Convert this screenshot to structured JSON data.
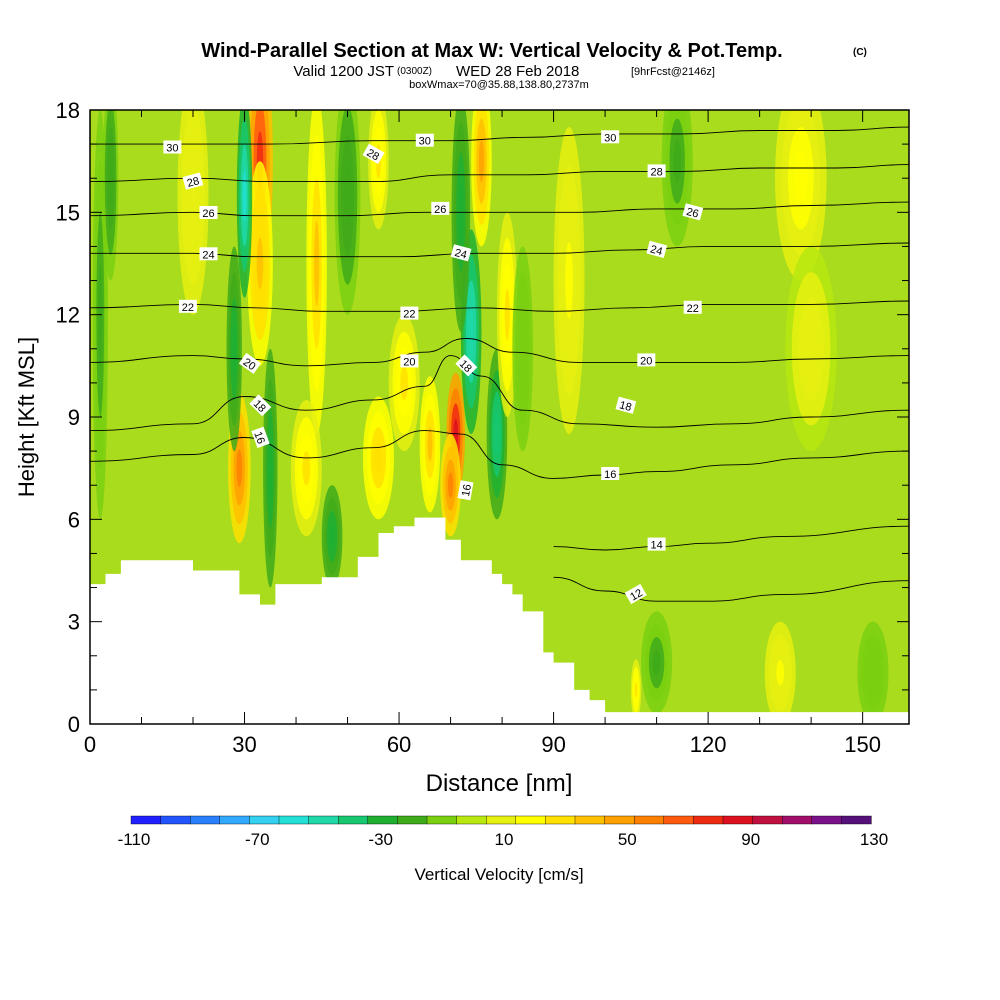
{
  "chart_data": {
    "type": "heatmap",
    "title": "Wind-Parallel Section at Max W: Vertical Velocity & Pot.Temp.",
    "title_mark": "(C)",
    "subtitle_main": "Valid 1200 JST",
    "subtitle_utc": "(0300Z)",
    "subtitle_date": "WED 28 Feb 2018",
    "subtitle_fcst": "[9hrFcst@2146z]",
    "subtitle2": "boxWmax=70@35.88,138.80,2737m",
    "xlabel": "Distance [nm]",
    "ylabel": "Height [Kft MSL]",
    "xlim": [
      0,
      159
    ],
    "ylim": [
      0,
      18
    ],
    "x_ticks": [
      "0",
      "30",
      "60",
      "90",
      "120",
      "150"
    ],
    "y_ticks": [
      "0",
      "3",
      "6",
      "9",
      "12",
      "15",
      "18"
    ],
    "colorbar": {
      "label": "Vertical Velocity [cm/s]",
      "tick_labels": [
        "-110",
        "-70",
        "-30",
        "10",
        "50",
        "90",
        "130"
      ],
      "colors": [
        "#1f1fff",
        "#2255ff",
        "#2a7fff",
        "#33a8ff",
        "#33d0f0",
        "#22e0d6",
        "#20d8a8",
        "#18c870",
        "#1fb032",
        "#3faa1a",
        "#7ad010",
        "#b8e810",
        "#e6f010",
        "#ffff00",
        "#ffe000",
        "#ffc000",
        "#ffa000",
        "#ff8000",
        "#ff5a10",
        "#ee2a10",
        "#dd1020",
        "#c01040",
        "#a0106a",
        "#7a108a",
        "#55107a"
      ]
    },
    "background_color": "#a8dc1c",
    "theta_contours": [
      {
        "label": "12",
        "points": [
          [
            90,
            4.3
          ],
          [
            100,
            3.9
          ],
          [
            110,
            3.6
          ],
          [
            120,
            3.6
          ],
          [
            135,
            3.8
          ],
          [
            159,
            4.2
          ]
        ]
      },
      {
        "label": "14",
        "points": [
          [
            90,
            5.2
          ],
          [
            100,
            5.1
          ],
          [
            110,
            5.2
          ],
          [
            120,
            5.3
          ],
          [
            135,
            5.5
          ],
          [
            159,
            5.8
          ]
        ]
      },
      {
        "label": "16",
        "points": [
          [
            0,
            7.7
          ],
          [
            20,
            7.9
          ],
          [
            30,
            8.4
          ],
          [
            42,
            7.8
          ],
          [
            55,
            8.1
          ],
          [
            65,
            8.6
          ],
          [
            72,
            8.5
          ],
          [
            80,
            7.6
          ],
          [
            90,
            7.2
          ],
          [
            100,
            7.3
          ],
          [
            110,
            7.4
          ],
          [
            125,
            7.6
          ],
          [
            140,
            7.8
          ],
          [
            159,
            8.0
          ]
        ]
      },
      {
        "label": "18",
        "points": [
          [
            0,
            8.6
          ],
          [
            20,
            8.8
          ],
          [
            30,
            9.6
          ],
          [
            42,
            9.2
          ],
          [
            55,
            9.5
          ],
          [
            65,
            9.9
          ],
          [
            70,
            10.8
          ],
          [
            76,
            10.2
          ],
          [
            84,
            9.2
          ],
          [
            95,
            8.8
          ],
          [
            110,
            8.7
          ],
          [
            125,
            8.8
          ],
          [
            140,
            9.0
          ],
          [
            159,
            9.2
          ]
        ]
      },
      {
        "label": "20",
        "points": [
          [
            0,
            10.6
          ],
          [
            20,
            10.8
          ],
          [
            30,
            10.7
          ],
          [
            42,
            10.5
          ],
          [
            55,
            10.6
          ],
          [
            65,
            10.9
          ],
          [
            73,
            11.3
          ],
          [
            82,
            10.9
          ],
          [
            95,
            10.6
          ],
          [
            110,
            10.6
          ],
          [
            125,
            10.6
          ],
          [
            140,
            10.7
          ],
          [
            159,
            10.8
          ]
        ]
      },
      {
        "label": "22",
        "points": [
          [
            0,
            12.2
          ],
          [
            20,
            12.3
          ],
          [
            32,
            12.2
          ],
          [
            45,
            12.1
          ],
          [
            60,
            12.1
          ],
          [
            75,
            12.2
          ],
          [
            90,
            12.1
          ],
          [
            105,
            12.2
          ],
          [
            120,
            12.3
          ],
          [
            140,
            12.3
          ],
          [
            159,
            12.4
          ]
        ]
      },
      {
        "label": "24",
        "points": [
          [
            0,
            13.8
          ],
          [
            20,
            13.8
          ],
          [
            32,
            13.7
          ],
          [
            45,
            13.7
          ],
          [
            60,
            13.7
          ],
          [
            75,
            13.8
          ],
          [
            90,
            13.8
          ],
          [
            105,
            13.9
          ],
          [
            120,
            14.0
          ],
          [
            140,
            14.0
          ],
          [
            159,
            14.1
          ]
        ]
      },
      {
        "label": "26",
        "points": [
          [
            0,
            14.9
          ],
          [
            20,
            15.0
          ],
          [
            32,
            14.9
          ],
          [
            50,
            14.9
          ],
          [
            65,
            15.0
          ],
          [
            80,
            15.0
          ],
          [
            95,
            15.0
          ],
          [
            110,
            15.1
          ],
          [
            125,
            15.1
          ],
          [
            140,
            15.2
          ],
          [
            159,
            15.3
          ]
        ]
      },
      {
        "label": "28",
        "points": [
          [
            0,
            15.9
          ],
          [
            20,
            16.0
          ],
          [
            35,
            15.9
          ],
          [
            55,
            15.9
          ],
          [
            70,
            16.1
          ],
          [
            85,
            16.1
          ],
          [
            100,
            16.2
          ],
          [
            115,
            16.2
          ],
          [
            130,
            16.3
          ],
          [
            145,
            16.3
          ],
          [
            159,
            16.4
          ]
        ]
      },
      {
        "label": "30",
        "points": [
          [
            0,
            17.0
          ],
          [
            20,
            17.0
          ],
          [
            35,
            17.0
          ],
          [
            55,
            17.1
          ],
          [
            70,
            17.1
          ],
          [
            85,
            17.2
          ],
          [
            100,
            17.3
          ],
          [
            115,
            17.3
          ],
          [
            130,
            17.4
          ],
          [
            145,
            17.4
          ],
          [
            159,
            17.5
          ]
        ]
      }
    ],
    "theta_labels": [
      {
        "text": "30",
        "x": 16,
        "y": 16.9,
        "rot": 0
      },
      {
        "text": "28",
        "x": 20,
        "y": 15.9,
        "rot": -15
      },
      {
        "text": "26",
        "x": 23,
        "y": 14.98,
        "rot": 0
      },
      {
        "text": "24",
        "x": 23,
        "y": 13.77,
        "rot": 0
      },
      {
        "text": "22",
        "x": 19,
        "y": 12.23,
        "rot": 0
      },
      {
        "text": "20",
        "x": 31,
        "y": 10.56,
        "rot": 35
      },
      {
        "text": "18",
        "x": 33,
        "y": 9.33,
        "rot": 45
      },
      {
        "text": "16",
        "x": 33,
        "y": 8.4,
        "rot": 70
      },
      {
        "text": "28",
        "x": 55,
        "y": 16.7,
        "rot": 30
      },
      {
        "text": "30",
        "x": 65,
        "y": 17.1,
        "rot": 0
      },
      {
        "text": "26",
        "x": 68,
        "y": 15.1,
        "rot": 0
      },
      {
        "text": "24",
        "x": 72,
        "y": 13.8,
        "rot": 15
      },
      {
        "text": "22",
        "x": 62,
        "y": 12.03,
        "rot": 0
      },
      {
        "text": "20",
        "x": 62,
        "y": 10.63,
        "rot": 0
      },
      {
        "text": "18",
        "x": 73,
        "y": 10.5,
        "rot": 45
      },
      {
        "text": "16",
        "x": 73,
        "y": 6.85,
        "rot": -80
      },
      {
        "text": "30",
        "x": 101,
        "y": 17.2,
        "rot": 0
      },
      {
        "text": "28",
        "x": 110,
        "y": 16.2,
        "rot": 0
      },
      {
        "text": "26",
        "x": 117,
        "y": 15.0,
        "rot": 15
      },
      {
        "text": "24",
        "x": 110,
        "y": 13.9,
        "rot": 15
      },
      {
        "text": "22",
        "x": 117,
        "y": 12.2,
        "rot": 0
      },
      {
        "text": "20",
        "x": 108,
        "y": 10.66,
        "rot": 0
      },
      {
        "text": "18",
        "x": 104,
        "y": 9.33,
        "rot": 15
      },
      {
        "text": "16",
        "x": 101,
        "y": 7.33,
        "rot": 0
      },
      {
        "text": "14",
        "x": 110,
        "y": 5.26,
        "rot": 0
      },
      {
        "text": "12",
        "x": 106,
        "y": 3.8,
        "rot": -30
      }
    ],
    "terrain": [
      [
        0,
        4.1
      ],
      [
        3,
        4.1
      ],
      [
        3,
        4.4
      ],
      [
        6,
        4.4
      ],
      [
        6,
        4.8
      ],
      [
        20,
        4.8
      ],
      [
        20,
        4.5
      ],
      [
        29,
        4.5
      ],
      [
        29,
        3.8
      ],
      [
        33,
        3.8
      ],
      [
        33,
        3.5
      ],
      [
        36,
        3.5
      ],
      [
        36,
        4.1
      ],
      [
        45,
        4.1
      ],
      [
        45,
        4.3
      ],
      [
        52,
        4.3
      ],
      [
        52,
        4.9
      ],
      [
        56,
        4.9
      ],
      [
        56,
        5.6
      ],
      [
        59,
        5.6
      ],
      [
        59,
        5.8
      ],
      [
        63,
        5.8
      ],
      [
        63,
        6.05
      ],
      [
        69,
        6.05
      ],
      [
        69,
        5.4
      ],
      [
        72,
        5.4
      ],
      [
        72,
        4.8
      ],
      [
        78,
        4.8
      ],
      [
        78,
        4.4
      ],
      [
        80,
        4.4
      ],
      [
        80,
        4.1
      ],
      [
        82,
        4.1
      ],
      [
        82,
        3.8
      ],
      [
        84,
        3.8
      ],
      [
        84,
        3.3
      ],
      [
        88,
        3.3
      ],
      [
        88,
        2.1
      ],
      [
        90,
        2.1
      ],
      [
        90,
        1.8
      ],
      [
        94,
        1.8
      ],
      [
        94,
        1.0
      ],
      [
        97,
        1.0
      ],
      [
        97,
        0.7
      ],
      [
        100,
        0.7
      ],
      [
        100,
        0.35
      ],
      [
        159,
        0.35
      ],
      [
        159,
        0
      ],
      [
        0,
        0
      ]
    ],
    "w_field": [
      {
        "x": 33,
        "y": 16.5,
        "sx": 2.5,
        "sy": 3.5,
        "w": 80
      },
      {
        "x": 33,
        "y": 13.5,
        "sx": 2.5,
        "sy": 3.0,
        "w": 40
      },
      {
        "x": 29,
        "y": 7.5,
        "sx": 2.2,
        "sy": 2.2,
        "w": 55
      },
      {
        "x": 30,
        "y": 15.5,
        "sx": 1.5,
        "sy": 3.0,
        "w": -60
      },
      {
        "x": 28,
        "y": 11.0,
        "sx": 1.5,
        "sy": 3.0,
        "w": -35
      },
      {
        "x": 35,
        "y": 7.5,
        "sx": 1.4,
        "sy": 3.5,
        "w": -30
      },
      {
        "x": 44,
        "y": 13.5,
        "sx": 2.0,
        "sy": 5.0,
        "w": 35
      },
      {
        "x": 50,
        "y": 15.5,
        "sx": 2.5,
        "sy": 3.5,
        "w": -25
      },
      {
        "x": 56,
        "y": 16.5,
        "sx": 2.0,
        "sy": 2.0,
        "w": 25
      },
      {
        "x": 42,
        "y": 7.5,
        "sx": 3.0,
        "sy": 2.0,
        "w": 25
      },
      {
        "x": 47,
        "y": 5.5,
        "sx": 2.0,
        "sy": 1.5,
        "w": -35
      },
      {
        "x": 56,
        "y": 7.8,
        "sx": 3.0,
        "sy": 1.8,
        "w": 30
      },
      {
        "x": 61,
        "y": 10.0,
        "sx": 3.0,
        "sy": 2.0,
        "w": 25
      },
      {
        "x": 66,
        "y": 8.2,
        "sx": 2.0,
        "sy": 2.0,
        "w": 35
      },
      {
        "x": 71,
        "y": 8.5,
        "sx": 1.8,
        "sy": 1.8,
        "w": 90
      },
      {
        "x": 70,
        "y": 7.0,
        "sx": 2.0,
        "sy": 1.5,
        "w": 60
      },
      {
        "x": 74,
        "y": 11.5,
        "sx": 2.0,
        "sy": 3.0,
        "w": -55
      },
      {
        "x": 72,
        "y": 15.0,
        "sx": 1.8,
        "sy": 3.5,
        "w": -35
      },
      {
        "x": 79,
        "y": 8.5,
        "sx": 2.0,
        "sy": 2.5,
        "w": -45
      },
      {
        "x": 76,
        "y": 16.5,
        "sx": 2.0,
        "sy": 2.5,
        "w": 45
      },
      {
        "x": 81,
        "y": 12.0,
        "sx": 2.0,
        "sy": 3.0,
        "w": 25
      },
      {
        "x": 84,
        "y": 11.0,
        "sx": 2.0,
        "sy": 3.0,
        "w": -15
      },
      {
        "x": 93,
        "y": 13.0,
        "sx": 3.0,
        "sy": 4.5,
        "w": 15
      },
      {
        "x": 114,
        "y": 16.5,
        "sx": 3.0,
        "sy": 2.5,
        "w": -20
      },
      {
        "x": 138,
        "y": 16.0,
        "sx": 5.0,
        "sy": 3.0,
        "w": 18
      },
      {
        "x": 140,
        "y": 11.0,
        "sx": 5.0,
        "sy": 3.0,
        "w": 8
      },
      {
        "x": 134,
        "y": 1.5,
        "sx": 3.0,
        "sy": 1.5,
        "w": 15
      },
      {
        "x": 110,
        "y": 1.8,
        "sx": 3.0,
        "sy": 1.5,
        "w": -20
      },
      {
        "x": 106,
        "y": 1.0,
        "sx": 1.0,
        "sy": 0.9,
        "w": 25
      },
      {
        "x": 152,
        "y": 1.5,
        "sx": 3.0,
        "sy": 1.5,
        "w": -12
      },
      {
        "x": 2,
        "y": 12.0,
        "sx": 1.5,
        "sy": 6.0,
        "w": -22
      },
      {
        "x": 4,
        "y": 16.0,
        "sx": 1.5,
        "sy": 3.0,
        "w": -25
      },
      {
        "x": 20,
        "y": 15.5,
        "sx": 3.0,
        "sy": 3.5,
        "w": 10
      }
    ]
  }
}
